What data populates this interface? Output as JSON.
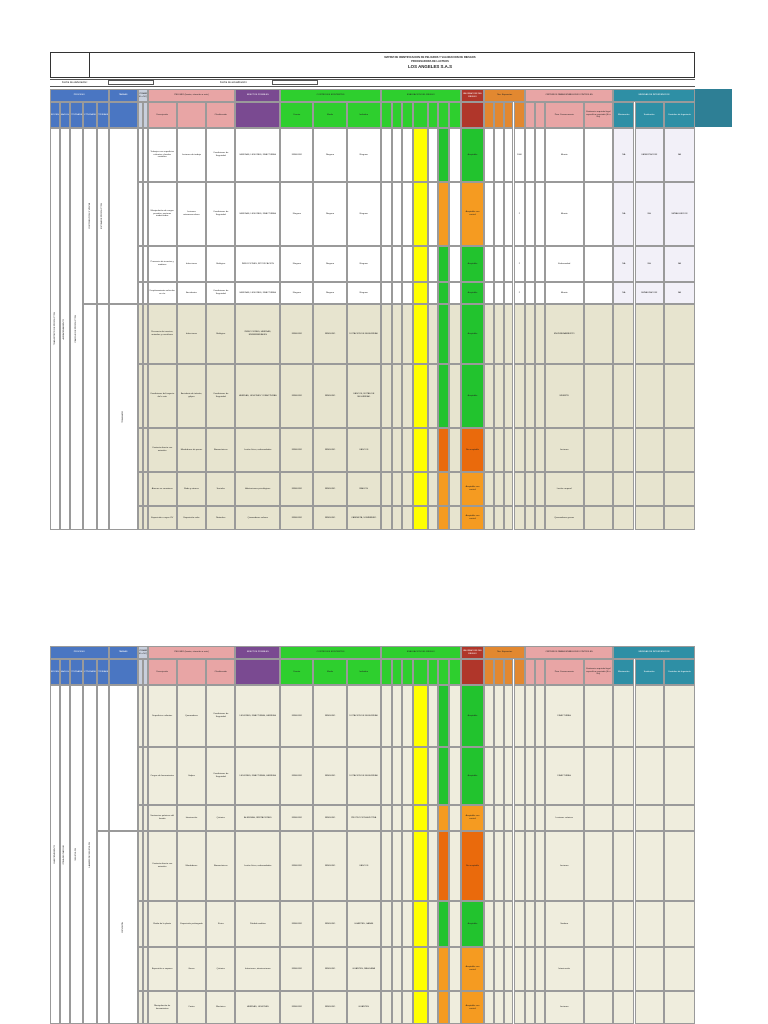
{
  "title": {
    "line1": "MATRIZ DE IDENTIFICACION DE PELIGROS Y VALORACION DE RIESGOS",
    "line2": "PROCESADORA DE LACTEOS",
    "company": "LOS ANGELES S.A.S"
  },
  "fecha_labels": [
    "Fecha de elaboración:",
    "Fecha de actualización:"
  ],
  "headers": {
    "proceso": "PROCESO",
    "zona": "ZONA/LUGAR",
    "actividades": "ACTIVIDADES",
    "tareas": "TAREAS",
    "rutinario": "RUTINARIO (SI o NO)",
    "peligro": "PELIGRO (fuente, situación o acto)",
    "descripcion": "Descripción",
    "clasificacion": "Clasificación",
    "efectos": "EFECTOS POSIBLES",
    "controles": "CONTROLES EXISTENTES",
    "fuente": "Fuente",
    "medio": "Medio",
    "individuo": "Individuo",
    "evaluacion": "EVALUACION DEL RIESGO",
    "valoracion": "VALORACION DEL RIESGO",
    "criterios": "CRITERIOS PARA ESTABLECER CONTROLES",
    "medidas": "MEDIDAS DE INTERVENCION",
    "eliminacion": "Eliminación",
    "sustitucion": "Sustitución",
    "controles_ing": "Controles de Ingeniería",
    "nro_expuestos": "Nro. Expuestos",
    "peor_consecuencia": "Peor Consecuencia",
    "requisito_legal": "Existencia requisito legal específico asociado (Si o No)"
  },
  "block1": {
    "proceso": "TRANSPORTE DE PRODUCTOS",
    "zona": "ALMACENAMIENTO",
    "actividad": "CARGUE DE PRODUCTOS",
    "sub_actividad": "DISTRIBUCION Y VENTA",
    "tarea_a": "ESTIBA DE PRODUCTOS",
    "tarea_b": "TRASLADO",
    "rutinario": "SI",
    "rows": [
      {
        "desc": "Trabajos con superficies calientes y bordes cortantes",
        "efecto": "Lesiones de trabajo",
        "clasif": "Condiciones de Seguridad",
        "controles": "HERIDAS, LESIONES, FRACTURAS",
        "fuente": "NINGUNO",
        "medio": "Ninguno",
        "individuo": "Ninguno",
        "nivel": "Aceptable",
        "color": "#22c32e",
        "expuestos": "1000",
        "peor": "Muerte",
        "elim": "NA",
        "sust": "CAPACITACION",
        "ing": "NA"
      },
      {
        "desc": "Manipulación de cargas pesadas, posturas inadecuadas",
        "efecto": "Lesiones osteomusculares",
        "clasif": "Condiciones de Seguridad",
        "controles": "HERIDAS, LESIONES, FRACTURAS",
        "fuente": "Ninguno",
        "medio": "Ninguno",
        "individuo": "Ninguno",
        "nivel": "Aceptable con control",
        "color": "#f59b21",
        "expuestos": "2",
        "peor": "Muerte",
        "elim": "NA",
        "sust": "NA",
        "ing": "SEÑALIZACION"
      },
      {
        "desc": "Presencia de insectos y roedores",
        "efecto": "Infecciones",
        "clasif": "Biológico",
        "controles": "INFECCIONES, INTOXICACION",
        "fuente": "Ninguno",
        "medio": "Ninguno",
        "individuo": "Ninguno",
        "nivel": "Aceptable",
        "color": "#22c32e",
        "expuestos": "2",
        "peor": "Enfermedad",
        "elim": "NA",
        "sust": "NA",
        "ing": "NA"
      },
      {
        "desc": "Desplazamiento vehicular en vía",
        "efecto": "Accidentes",
        "clasif": "Condiciones de Seguridad",
        "controles": "HERIDAS, LESIONES, FRACTURAS",
        "fuente": "Ninguno",
        "medio": "Ninguno",
        "individuo": "Ninguno",
        "nivel": "Aceptable",
        "color": "#22c32e",
        "expuestos": "2",
        "peor": "Muerte",
        "elim": "NA",
        "sust": "SEÑALIZACION",
        "ing": "NA"
      }
    ]
  },
  "block1b": {
    "tarea": "TRASLADO",
    "rows": [
      {
        "desc": "Presencia de insectos, animales y carroñeros",
        "efecto": "Infecciones",
        "clasif": "Biológico",
        "controles": "INFECCIONES, HERIDAS, ENFERMEDADES",
        "fuente": "NINGUNO",
        "medio": "NINGUNO",
        "individuo": "DOTACION DE SEGURIDAD",
        "nivel": "Aceptable",
        "color": "#22c32e",
        "peor": "ENVENENAMIENTO"
      },
      {
        "desc": "Condiciones del trayecto de la ruta",
        "efecto": "Accidente de tránsito, golpes",
        "clasif": "Condiciones de Seguridad",
        "controles": "HERIDAS, LESIONES Y FRACTURAS",
        "fuente": "NINGUNO",
        "medio": "NINGUNO",
        "individuo": "CASCOS, BOTAS DE SEGURIDAD",
        "nivel": "Aceptable",
        "color": "#22c32e",
        "peor": "MUERTE"
      },
      {
        "desc": "Contacto directo con animales",
        "efecto": "Mordeduras de perros",
        "clasif": "Biomecánicos",
        "controles": "Lesión física, enfermedades",
        "fuente": "NINGUNO",
        "medio": "NINGUNO",
        "individuo": "CASCOS",
        "nivel": "No aceptable",
        "color": "#ea6a0c",
        "peor": "Lesiones"
      },
      {
        "desc": "Atracos en carreteras",
        "efecto": "Robo y atracos",
        "clasif": "Sociales",
        "controles": "Afectaciones psicológicas",
        "fuente": "NINGUNO",
        "medio": "NINGUNO",
        "individuo": "RADIOS",
        "nivel": "Aceptable con control",
        "color": "#f59b21",
        "peor": "Lesión corporal"
      },
      {
        "desc": "Exposición a rayos UV",
        "efecto": "Exposición solar",
        "clasif": "Naturales",
        "controles": "Quemaduras solares",
        "fuente": "NINGUNO",
        "medio": "NINGUNO",
        "individuo": "CAMISETA, SOMBRERO",
        "nivel": "Aceptable con control",
        "color": "#f59b21",
        "peor": "Quemaduras graves"
      }
    ]
  },
  "block2": {
    "proceso": "MANTENIMIENTO",
    "zona": "ZONA DE CARGUE",
    "actividad": "VEHICULOS",
    "sub_actividad": "LAVADO DE VEHICULOS",
    "tarea": "REVISION",
    "rows": [
      {
        "desc": "Superficies calientes",
        "efecto": "Quemaduras",
        "clasif": "Condiciones de Seguridad",
        "controles": "LESIONES, FRACTURAS, HERIDAS",
        "fuente": "NINGUNO",
        "medio": "NINGUNO",
        "individuo": "DOTACION DE SEGURIDAD",
        "nivel": "Aceptable",
        "color": "#22c32e",
        "peor": "FRACTURAS"
      },
      {
        "desc": "Cargas de herramientas",
        "efecto": "Golpes",
        "clasif": "Condiciones de Seguridad",
        "controles": "LESIONES, FRACTURAS, HERIDAS",
        "fuente": "NINGUNO",
        "medio": "NINGUNO",
        "individuo": "DOTACION DE SEGURIDAD",
        "nivel": "Aceptable",
        "color": "#22c32e",
        "peor": "FRACTURAS"
      },
      {
        "desc": "Sustancias químicas del lavado",
        "efecto": "Intoxicación",
        "clasif": "Químico",
        "controles": "ALERGIAS, IRRITACIONES",
        "fuente": "NINGUNO",
        "medio": "NINGUNO",
        "individuo": "PROTECCION AUDITIVA",
        "nivel": "Aceptable con control",
        "color": "#f59b21",
        "peor": "Lesiones crónicas"
      },
      {
        "desc": "Contacto directo con animales",
        "efecto": "Mordeduras",
        "clasif": "Biomecánicos",
        "controles": "Lesión física, enfermedades",
        "fuente": "NINGUNO",
        "medio": "NINGUNO",
        "individuo": "CASCOS",
        "nivel": "No aceptable",
        "color": "#ea6a0c",
        "peor": "Lesiones"
      },
      {
        "desc": "Ruido de la planta",
        "efecto": "Exposición prolongada",
        "clasif": "Físico",
        "controles": "Pérdida auditiva",
        "fuente": "NINGUNO",
        "medio": "NINGUNO",
        "individuo": "GUANTES, GAFAS",
        "nivel": "Aceptable",
        "color": "#22c32e",
        "peor": "Sordera"
      },
      {
        "desc": "Exposición a vapores",
        "efecto": "Gases",
        "clasif": "Químico",
        "controles": "Irritaciones, intoxicaciones",
        "fuente": "NINGUNO",
        "medio": "NINGUNO",
        "individuo": "GUANTES, MASCARA",
        "nivel": "Aceptable con control",
        "color": "#f59b21",
        "peor": "Intoxicación"
      },
      {
        "desc": "Manipulación de herramientas",
        "efecto": "Cortes",
        "clasif": "Mecánico",
        "controles": "HERIDAS, LESIONES",
        "fuente": "NINGUNO",
        "medio": "NINGUNO",
        "individuo": "GUANTES",
        "nivel": "Aceptable con control",
        "color": "#f59b21",
        "peor": "Lesiones"
      }
    ]
  }
}
